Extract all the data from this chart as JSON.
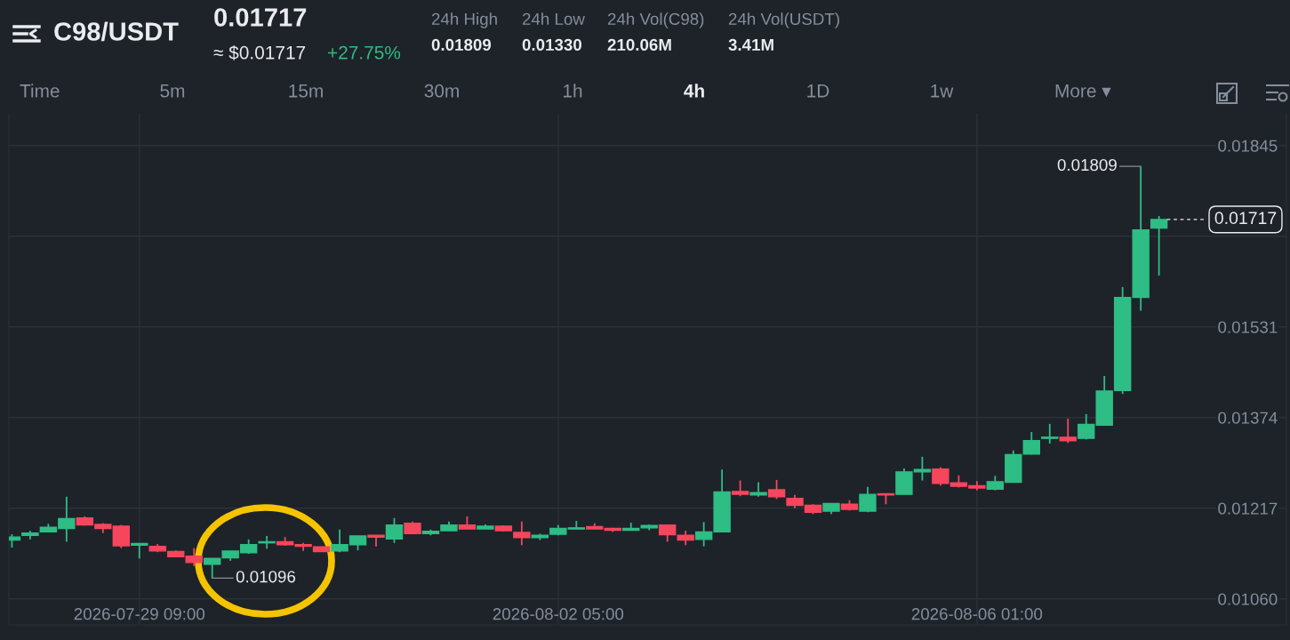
{
  "chart_data": {
    "type": "candlestick",
    "title": "C98/USDT",
    "x": [
      "2026-07-28T05:00",
      "2026-07-28T09:00",
      "2026-07-28T13:00",
      "2026-07-28T17:00",
      "2026-07-28T21:00",
      "2026-07-29T01:00",
      "2026-07-29T05:00",
      "2026-07-29T09:00",
      "2026-07-29T13:00",
      "2026-07-29T17:00",
      "2026-07-29T21:00",
      "2026-07-30T01:00",
      "2026-07-30T05:00",
      "2026-07-30T09:00",
      "2026-07-30T13:00",
      "2026-07-30T17:00",
      "2026-07-30T21:00",
      "2026-07-31T01:00",
      "2026-07-31T05:00",
      "2026-07-31T09:00",
      "2026-07-31T13:00",
      "2026-07-31T17:00",
      "2026-07-31T21:00",
      "2026-08-01T01:00",
      "2026-08-01T05:00",
      "2026-08-01T09:00",
      "2026-08-01T13:00",
      "2026-08-01T17:00",
      "2026-08-01T21:00",
      "2026-08-02T01:00",
      "2026-08-02T05:00",
      "2026-08-02T09:00",
      "2026-08-02T13:00",
      "2026-08-02T17:00",
      "2026-08-02T21:00",
      "2026-08-03T01:00",
      "2026-08-03T05:00",
      "2026-08-03T09:00",
      "2026-08-03T13:00",
      "2026-08-03T17:00",
      "2026-08-03T21:00",
      "2026-08-04T01:00",
      "2026-08-04T05:00",
      "2026-08-04T09:00",
      "2026-08-04T13:00",
      "2026-08-04T17:00",
      "2026-08-04T21:00",
      "2026-08-05T01:00",
      "2026-08-05T05:00",
      "2026-08-05T09:00",
      "2026-08-05T13:00",
      "2026-08-05T17:00",
      "2026-08-05T21:00",
      "2026-08-06T01:00",
      "2026-08-06T05:00",
      "2026-08-06T09:00",
      "2026-08-06T13:00",
      "2026-08-06T17:00",
      "2026-08-06T21:00",
      "2026-08-07T01:00",
      "2026-08-07T05:00",
      "2026-08-07T09:00",
      "2026-08-07T13:00",
      "2026-08-07T17:00"
    ],
    "ohlc": [
      [
        0.01162,
        0.01172,
        0.01149,
        0.01167
      ],
      [
        0.0117,
        0.01178,
        0.01163,
        0.01174
      ],
      [
        0.01176,
        0.0119,
        0.01176,
        0.01184
      ],
      [
        0.01182,
        0.01237,
        0.01159,
        0.01199
      ],
      [
        0.012,
        0.01203,
        0.01187,
        0.01188
      ],
      [
        0.01189,
        0.01191,
        0.01174,
        0.01182
      ],
      [
        0.01186,
        0.01188,
        0.01148,
        0.01152
      ],
      [
        0.01153,
        0.01156,
        0.0113,
        0.01156
      ],
      [
        0.01151,
        0.01155,
        0.01141,
        0.01143
      ],
      [
        0.01142,
        0.01144,
        0.01133,
        0.01133
      ],
      [
        0.01134,
        0.01148,
        0.01117,
        0.01123
      ],
      [
        0.0112,
        0.0113,
        0.01096,
        0.0113
      ],
      [
        0.01131,
        0.01143,
        0.01126,
        0.01143
      ],
      [
        0.0114,
        0.01163,
        0.01138,
        0.01154
      ],
      [
        0.01157,
        0.01169,
        0.01147,
        0.01159
      ],
      [
        0.01159,
        0.01167,
        0.01152,
        0.01154
      ],
      [
        0.01154,
        0.01157,
        0.01143,
        0.01151
      ],
      [
        0.0115,
        0.0115,
        0.01142,
        0.01142
      ],
      [
        0.01143,
        0.0118,
        0.01141,
        0.01154
      ],
      [
        0.01154,
        0.01169,
        0.01144,
        0.01169
      ],
      [
        0.0117,
        0.01171,
        0.01151,
        0.01167
      ],
      [
        0.01164,
        0.012,
        0.01157,
        0.01188
      ],
      [
        0.01191,
        0.01194,
        0.01172,
        0.01173
      ],
      [
        0.01173,
        0.0118,
        0.0117,
        0.01177
      ],
      [
        0.01178,
        0.01194,
        0.01178,
        0.01188
      ],
      [
        0.01188,
        0.01203,
        0.01181,
        0.01181
      ],
      [
        0.01181,
        0.01189,
        0.01181,
        0.01186
      ],
      [
        0.01186,
        0.01187,
        0.01177,
        0.01178
      ],
      [
        0.01175,
        0.01194,
        0.01153,
        0.01166
      ],
      [
        0.01166,
        0.01173,
        0.01162,
        0.0117
      ],
      [
        0.01172,
        0.01188,
        0.0117,
        0.01182
      ],
      [
        0.01181,
        0.01195,
        0.01181,
        0.01183
      ],
      [
        0.01185,
        0.01191,
        0.01181,
        0.01181
      ],
      [
        0.01182,
        0.01183,
        0.01176,
        0.01179
      ],
      [
        0.01179,
        0.01192,
        0.01178,
        0.01182
      ],
      [
        0.01183,
        0.01189,
        0.01179,
        0.01187
      ],
      [
        0.01188,
        0.01188,
        0.01159,
        0.01171
      ],
      [
        0.0117,
        0.01178,
        0.01153,
        0.01162
      ],
      [
        0.01163,
        0.01193,
        0.01151,
        0.01176
      ],
      [
        0.01176,
        0.01284,
        0.01175,
        0.01245
      ],
      [
        0.01246,
        0.01265,
        0.01238,
        0.01241
      ],
      [
        0.0124,
        0.01262,
        0.01237,
        0.01244
      ],
      [
        0.01249,
        0.01266,
        0.01233,
        0.01237
      ],
      [
        0.01234,
        0.0124,
        0.01217,
        0.01222
      ],
      [
        0.01222,
        0.01224,
        0.01207,
        0.0121
      ],
      [
        0.01212,
        0.01225,
        0.01207,
        0.01225
      ],
      [
        0.01224,
        0.01231,
        0.01213,
        0.01215
      ],
      [
        0.01212,
        0.01254,
        0.0121,
        0.01241
      ],
      [
        0.01242,
        0.01242,
        0.01224,
        0.0124
      ],
      [
        0.01241,
        0.01286,
        0.01241,
        0.0128
      ],
      [
        0.0128,
        0.01306,
        0.01265,
        0.01284
      ],
      [
        0.01285,
        0.01288,
        0.01256,
        0.0126
      ],
      [
        0.01261,
        0.01274,
        0.01253,
        0.01255
      ],
      [
        0.01256,
        0.01264,
        0.01248,
        0.01252
      ],
      [
        0.0125,
        0.01273,
        0.01248,
        0.01263
      ],
      [
        0.01262,
        0.01317,
        0.01261,
        0.0131
      ],
      [
        0.01311,
        0.01349,
        0.0131,
        0.01334
      ],
      [
        0.01338,
        0.01363,
        0.01329,
        0.0134
      ],
      [
        0.0134,
        0.01372,
        0.0133,
        0.01334
      ],
      [
        0.01338,
        0.0138,
        0.01336,
        0.01362
      ],
      [
        0.01361,
        0.01446,
        0.0136,
        0.0142
      ],
      [
        0.01421,
        0.016,
        0.01415,
        0.01582
      ],
      [
        0.01582,
        0.01809,
        0.01559,
        0.01699
      ],
      [
        0.01702,
        0.01723,
        0.0162,
        0.01717
      ]
    ],
    "colors": [
      "#2ebd85",
      "#2ebd85",
      "#2ebd85",
      "#2ebd85",
      "#f6465d",
      "#f6465d",
      "#f6465d",
      "#2ebd85",
      "#f6465d",
      "#f6465d",
      "#f6465d",
      "#2ebd85",
      "#2ebd85",
      "#2ebd85",
      "#2ebd85",
      "#f6465d",
      "#f6465d",
      "#f6465d",
      "#2ebd85",
      "#2ebd85",
      "#f6465d",
      "#2ebd85",
      "#f6465d",
      "#2ebd85",
      "#2ebd85",
      "#f6465d",
      "#2ebd85",
      "#f6465d",
      "#f6465d",
      "#2ebd85",
      "#2ebd85",
      "#2ebd85",
      "#f6465d",
      "#f6465d",
      "#2ebd85",
      "#2ebd85",
      "#f6465d",
      "#f6465d",
      "#2ebd85",
      "#2ebd85",
      "#f6465d",
      "#2ebd85",
      "#f6465d",
      "#f6465d",
      "#f6465d",
      "#2ebd85",
      "#f6465d",
      "#2ebd85",
      "#f6465d",
      "#2ebd85",
      "#2ebd85",
      "#f6465d",
      "#f6465d",
      "#f6465d",
      "#2ebd85",
      "#2ebd85",
      "#2ebd85",
      "#2ebd85",
      "#f6465d",
      "#2ebd85",
      "#2ebd85",
      "#2ebd85",
      "#2ebd85",
      "#2ebd85"
    ],
    "xlim": [
      "2026-07-28T04:20",
      "2026-08-08T21:00"
    ],
    "xticks": [
      {
        "value": "2026-07-29T09:00",
        "label": "2026-07-29 09:00"
      },
      {
        "value": "2026-08-02T05:00",
        "label": "2026-08-02 05:00"
      },
      {
        "value": "2026-08-06T01:00",
        "label": "2026-08-06 01:00"
      }
    ],
    "ylim": [
      0.01015,
      0.019
    ],
    "yticks": [
      {
        "value": 0.0106,
        "label": "0.01060"
      },
      0.01217,
      0.01374,
      0.01531,
      {
        "value": 0.01688,
        "label": null
      },
      0.01845
    ],
    "grid": true,
    "ref_lines": [
      {
        "axis": "y",
        "value": 0.01717,
        "label": "0.01717",
        "line_style": "dashed"
      }
    ],
    "annotations": [
      "0.01717",
      "≈ $0.01717",
      "+27.75%",
      "24h High",
      "0.01809",
      "24h Low",
      "0.01330",
      "24h Vol(C98)",
      "210.06M",
      "24h Vol(USDT)",
      "3.41M",
      "Time",
      "5m",
      "15m",
      "30m",
      "1h",
      "4h",
      "1D",
      "1w",
      "More ▾",
      {
        "text": "0.01096",
        "x": "2026-07-30T01:00",
        "y": 0.01096
      },
      {
        "text": "0.01809",
        "x": "2026-08-07T13:00",
        "y": 0.01809
      }
    ]
  }
}
